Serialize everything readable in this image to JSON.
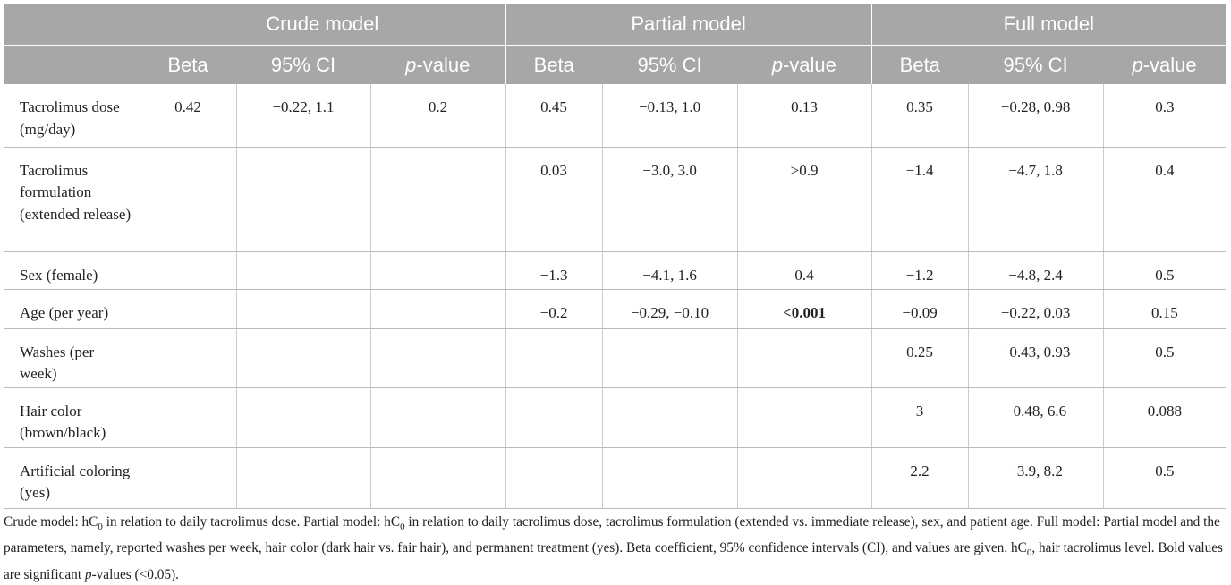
{
  "table": {
    "groups": [
      "Crude model",
      "Partial model",
      "Full model"
    ],
    "subheaders": [
      "Beta",
      "95% CI",
      [
        "p",
        "-value"
      ],
      "Beta",
      "95% CI",
      [
        "p",
        "-value"
      ],
      "Beta",
      "95% CI",
      [
        "p",
        "-value"
      ]
    ],
    "rows": [
      {
        "label": "Tacrolimus dose (mg/day)",
        "cells": [
          "0.42",
          "−0.22, 1.1",
          "0.2",
          "0.45",
          "−0.13, 1.0",
          "0.13",
          "0.35",
          "−0.28, 0.98",
          "0.3"
        ]
      },
      {
        "label": "Tacrolimus formulation (extended release)",
        "cells": [
          null,
          null,
          null,
          "0.03",
          "−3.0, 3.0",
          ">0.9",
          "−1.4",
          "−4.7, 1.8",
          "0.4"
        ]
      },
      {
        "label": "Sex (female)",
        "cells": [
          null,
          null,
          null,
          "−1.3",
          "−4.1, 1.6",
          "0.4",
          "−1.2",
          "−4.8, 2.4",
          "0.5"
        ]
      },
      {
        "label": "Age (per year)",
        "cells": [
          null,
          null,
          null,
          "−0.2",
          "−0.29, −0.10",
          {
            "text": "<0.001",
            "bold": true
          },
          "−0.09",
          "−0.22, 0.03",
          "0.15"
        ]
      },
      {
        "label": "Washes (per week)",
        "cells": [
          null,
          null,
          null,
          null,
          null,
          null,
          "0.25",
          "−0.43, 0.93",
          "0.5"
        ]
      },
      {
        "label": "Hair color (brown/black)",
        "cells": [
          null,
          null,
          null,
          null,
          null,
          null,
          "3",
          "−0.48, 6.6",
          "0.088"
        ]
      },
      {
        "label": "Artificial coloring (yes)",
        "cells": [
          null,
          null,
          null,
          null,
          null,
          null,
          "2.2",
          "−3.9, 8.2",
          "0.5"
        ]
      }
    ]
  },
  "footnote": [
    "Crude model: hC",
    "0",
    " in relation to daily tacrolimus dose. Partial model: hC",
    "0",
    " in relation to daily tacrolimus dose, tacrolimus formulation (extended vs. immediate release), sex, and patient age. Full model: Partial model and the parameters, namely, reported washes per week, hair color (dark hair vs. fair hair), and permanent treatment (yes). Beta coefficient, 95% confidence intervals (CI), and values are given. hC",
    "0",
    ", hair tacrolimus level. Bold values are significant ",
    "p",
    "-values (<0.05)."
  ]
}
